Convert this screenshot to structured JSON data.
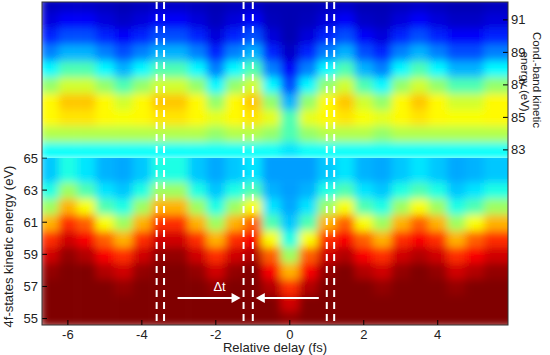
{
  "chart_data": {
    "type": "heatmap",
    "xlabel": "Relative delay (fs)",
    "xlim": [
      -6.7,
      5.9
    ],
    "xticks": [
      -6,
      -4,
      -2,
      0,
      2,
      4
    ],
    "zlim": [
      0,
      1
    ],
    "x": [
      -6.5,
      -6,
      -5.5,
      -5,
      -4.5,
      -4,
      -3.5,
      -3,
      -2.5,
      -2,
      -1.5,
      -1,
      -0.5,
      0,
      0.5,
      1,
      1.5,
      2,
      2.5,
      3,
      3.5,
      4,
      4.5,
      5,
      5.5,
      6
    ],
    "dashed_lines": [
      -3.6,
      -3.4,
      -1.25,
      -1.0,
      1.0,
      1.2
    ],
    "delta_t": {
      "label": "Δt",
      "between": [
        -1.25,
        -1.0
      ]
    },
    "panels": [
      {
        "ylabel": "4f-states kinetic energy (eV)",
        "ylim": [
          54.6,
          65
        ],
        "yticks": [
          55,
          57,
          59,
          61,
          63,
          65
        ],
        "y": [
          55,
          56,
          57,
          58,
          59,
          60,
          61,
          62,
          63,
          64,
          65
        ],
        "z": [
          [
            1,
            1,
            1,
            1,
            1,
            1,
            1,
            1,
            1,
            1,
            1,
            1,
            1,
            0.98,
            1,
            1,
            1,
            1,
            1,
            1,
            1,
            1,
            1,
            1,
            1,
            1
          ],
          [
            1,
            1,
            1,
            1,
            1,
            1,
            1,
            1,
            1,
            1,
            1,
            1,
            1,
            0.92,
            1,
            1,
            1,
            1,
            1,
            1,
            1,
            1,
            1,
            1,
            1,
            1
          ],
          [
            1,
            1,
            1,
            1,
            0.98,
            1,
            1,
            1,
            1,
            0.98,
            1,
            1,
            0.95,
            0.83,
            0.95,
            1,
            1,
            1,
            0.98,
            1,
            1,
            1,
            0.98,
            1,
            1,
            1
          ],
          [
            0.98,
            1,
            1,
            0.95,
            0.92,
            0.98,
            1,
            1,
            0.98,
            0.92,
            0.98,
            1,
            0.88,
            0.7,
            0.88,
            0.98,
            1,
            0.95,
            0.92,
            0.98,
            1,
            0.98,
            0.92,
            0.95,
            0.98,
            0.98
          ],
          [
            0.92,
            0.98,
            0.95,
            0.88,
            0.83,
            0.92,
            0.98,
            0.98,
            0.92,
            0.83,
            0.92,
            0.95,
            0.78,
            0.53,
            0.78,
            0.92,
            0.95,
            0.88,
            0.83,
            0.92,
            0.95,
            0.92,
            0.83,
            0.88,
            0.92,
            0.92
          ],
          [
            0.83,
            0.92,
            0.88,
            0.78,
            0.7,
            0.83,
            0.92,
            0.92,
            0.83,
            0.7,
            0.83,
            0.88,
            0.62,
            0.4,
            0.62,
            0.83,
            0.88,
            0.78,
            0.7,
            0.83,
            0.88,
            0.83,
            0.7,
            0.78,
            0.83,
            0.83
          ],
          [
            0.7,
            0.83,
            0.78,
            0.62,
            0.53,
            0.7,
            0.83,
            0.83,
            0.7,
            0.53,
            0.7,
            0.78,
            0.45,
            0.32,
            0.45,
            0.7,
            0.78,
            0.62,
            0.53,
            0.7,
            0.78,
            0.7,
            0.53,
            0.62,
            0.7,
            0.7
          ],
          [
            0.53,
            0.7,
            0.62,
            0.45,
            0.4,
            0.53,
            0.7,
            0.7,
            0.53,
            0.4,
            0.53,
            0.62,
            0.35,
            0.29,
            0.35,
            0.53,
            0.62,
            0.45,
            0.4,
            0.53,
            0.62,
            0.53,
            0.4,
            0.45,
            0.53,
            0.53
          ],
          [
            0.4,
            0.53,
            0.45,
            0.35,
            0.32,
            0.4,
            0.53,
            0.53,
            0.4,
            0.32,
            0.4,
            0.45,
            0.3,
            0.28,
            0.3,
            0.4,
            0.45,
            0.35,
            0.32,
            0.4,
            0.45,
            0.4,
            0.32,
            0.35,
            0.4,
            0.4
          ],
          [
            0.32,
            0.4,
            0.35,
            0.3,
            0.29,
            0.32,
            0.4,
            0.4,
            0.32,
            0.29,
            0.32,
            0.35,
            0.28,
            0.28,
            0.28,
            0.32,
            0.35,
            0.3,
            0.29,
            0.32,
            0.35,
            0.32,
            0.29,
            0.3,
            0.32,
            0.32
          ],
          [
            0.32,
            0.4,
            0.35,
            0.3,
            0.29,
            0.32,
            0.4,
            0.4,
            0.32,
            0.29,
            0.32,
            0.35,
            0.28,
            0.28,
            0.28,
            0.32,
            0.35,
            0.3,
            0.29,
            0.32,
            0.35,
            0.32,
            0.29,
            0.3,
            0.32,
            0.32
          ]
        ]
      },
      {
        "ylabel": "Cond.-band kinetic energy (eV)",
        "ylim": [
          82.5,
          92.1
        ],
        "yticks": [
          83,
          85,
          87,
          89,
          91
        ],
        "y": [
          83,
          84,
          85,
          86,
          87,
          88,
          89,
          90,
          91,
          92
        ],
        "z": [
          [
            0.38,
            0.38,
            0.38,
            0.38,
            0.38,
            0.38,
            0.38,
            0.38,
            0.38,
            0.38,
            0.38,
            0.38,
            0.38,
            0.35,
            0.38,
            0.38,
            0.38,
            0.38,
            0.38,
            0.38,
            0.38,
            0.38,
            0.38,
            0.38,
            0.38,
            0.38
          ],
          [
            0.55,
            0.55,
            0.55,
            0.55,
            0.55,
            0.55,
            0.55,
            0.55,
            0.55,
            0.52,
            0.55,
            0.55,
            0.52,
            0.45,
            0.52,
            0.55,
            0.55,
            0.55,
            0.52,
            0.55,
            0.55,
            0.55,
            0.55,
            0.55,
            0.55,
            0.55
          ],
          [
            0.63,
            0.65,
            0.65,
            0.63,
            0.62,
            0.63,
            0.65,
            0.65,
            0.63,
            0.6,
            0.63,
            0.65,
            0.6,
            0.45,
            0.6,
            0.63,
            0.65,
            0.62,
            0.6,
            0.63,
            0.65,
            0.63,
            0.62,
            0.62,
            0.63,
            0.63
          ],
          [
            0.63,
            0.68,
            0.68,
            0.63,
            0.58,
            0.63,
            0.68,
            0.68,
            0.63,
            0.52,
            0.63,
            0.68,
            0.52,
            0.3,
            0.52,
            0.63,
            0.68,
            0.58,
            0.52,
            0.63,
            0.68,
            0.63,
            0.58,
            0.58,
            0.63,
            0.63
          ],
          [
            0.52,
            0.58,
            0.58,
            0.52,
            0.45,
            0.52,
            0.58,
            0.58,
            0.52,
            0.37,
            0.52,
            0.58,
            0.37,
            0.2,
            0.37,
            0.52,
            0.58,
            0.45,
            0.37,
            0.52,
            0.58,
            0.52,
            0.45,
            0.45,
            0.52,
            0.52
          ],
          [
            0.37,
            0.45,
            0.45,
            0.37,
            0.3,
            0.37,
            0.45,
            0.45,
            0.37,
            0.25,
            0.37,
            0.45,
            0.25,
            0.12,
            0.25,
            0.37,
            0.45,
            0.3,
            0.25,
            0.37,
            0.45,
            0.37,
            0.3,
            0.3,
            0.37,
            0.37
          ],
          [
            0.25,
            0.3,
            0.3,
            0.25,
            0.2,
            0.25,
            0.3,
            0.3,
            0.25,
            0.16,
            0.25,
            0.3,
            0.16,
            0.07,
            0.16,
            0.25,
            0.3,
            0.2,
            0.16,
            0.25,
            0.3,
            0.25,
            0.2,
            0.2,
            0.25,
            0.25
          ],
          [
            0.16,
            0.2,
            0.2,
            0.16,
            0.12,
            0.16,
            0.2,
            0.2,
            0.16,
            0.09,
            0.16,
            0.2,
            0.09,
            0.05,
            0.09,
            0.16,
            0.2,
            0.12,
            0.09,
            0.16,
            0.2,
            0.16,
            0.12,
            0.12,
            0.16,
            0.16
          ],
          [
            0.09,
            0.12,
            0.12,
            0.09,
            0.07,
            0.09,
            0.12,
            0.12,
            0.09,
            0.06,
            0.09,
            0.12,
            0.06,
            0.05,
            0.06,
            0.09,
            0.12,
            0.07,
            0.06,
            0.09,
            0.12,
            0.09,
            0.07,
            0.07,
            0.09,
            0.09
          ],
          [
            0.06,
            0.07,
            0.07,
            0.06,
            0.05,
            0.06,
            0.07,
            0.07,
            0.06,
            0.05,
            0.06,
            0.07,
            0.05,
            0.05,
            0.05,
            0.06,
            0.07,
            0.05,
            0.05,
            0.06,
            0.07,
            0.06,
            0.05,
            0.05,
            0.06,
            0.06
          ]
        ]
      }
    ]
  }
}
